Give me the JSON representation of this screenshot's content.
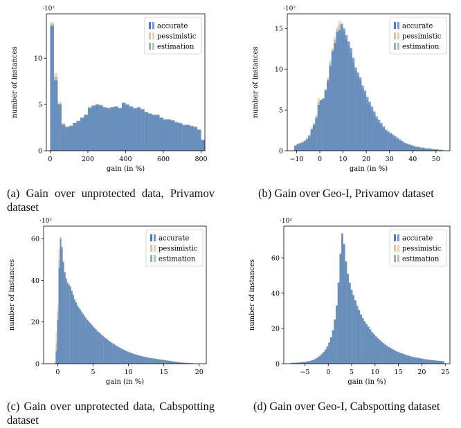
{
  "colors": {
    "accurate": "#4a78c0",
    "pessimistic": "#e7bfa0",
    "estimation": "#8fb79a",
    "overlap": "#6a8a80"
  },
  "captions": {
    "a": "(a) Gain over unprotected data, Privamov dataset",
    "b": "(b) Gain over Geo-I, Privamov dataset",
    "c": "(c) Gain over unprotected data, Cabspotting dataset",
    "d": "(d) Gain over Geo-I, Cabspotting dataset"
  },
  "chart_data": [
    {
      "type": "bar",
      "title": "",
      "xlabel": "gain (in %)",
      "ylabel": "number of instances",
      "y_multiplier": "·10²",
      "legend_placement": "top-right",
      "xlim": [
        -20,
        820
      ],
      "ylim": [
        0,
        14.8
      ],
      "xticks": [
        0,
        200,
        400,
        600,
        800
      ],
      "yticks": [
        0,
        5,
        10
      ],
      "x_start": 0,
      "bin_width": 20,
      "series": [
        {
          "name": "accurate",
          "values": [
            13.5,
            7.6,
            5.0,
            2.8,
            2.6,
            2.7,
            3.0,
            3.2,
            3.6,
            3.9,
            4.6,
            4.9,
            5.0,
            4.9,
            4.7,
            4.6,
            4.7,
            4.8,
            4.6,
            5.2,
            5.0,
            4.8,
            4.6,
            4.7,
            4.5,
            4.2,
            4.0,
            3.9,
            3.9,
            3.6,
            3.4,
            3.4,
            3.3,
            3.1,
            3.0,
            2.8,
            2.8,
            2.7,
            2.6,
            2.3,
            1.2
          ]
        },
        {
          "name": "pessimistic",
          "values": [
            13.9,
            8.4,
            5.3,
            3.0,
            2.5,
            2.7,
            2.9,
            3.3,
            3.4,
            3.9,
            4.8,
            4.8,
            4.9,
            5.0,
            4.5,
            4.7,
            4.6,
            4.7,
            4.7,
            5.0,
            4.8,
            4.6,
            4.6,
            4.5,
            4.3,
            4.1,
            4.0,
            3.8,
            3.7,
            3.5,
            3.3,
            3.4,
            3.2,
            3.0,
            2.9,
            2.7,
            2.8,
            2.6,
            2.5,
            2.2,
            1.0
          ]
        },
        {
          "name": "estimation",
          "values": [
            13.7,
            8.0,
            5.1,
            2.9,
            2.5,
            2.7,
            3.0,
            3.2,
            3.5,
            3.9,
            4.7,
            4.8,
            5.0,
            4.9,
            4.6,
            4.6,
            4.7,
            4.7,
            4.6,
            5.1,
            4.9,
            4.7,
            4.6,
            4.6,
            4.4,
            4.1,
            4.0,
            3.8,
            3.8,
            3.5,
            3.3,
            3.4,
            3.2,
            3.0,
            2.9,
            2.7,
            2.8,
            2.6,
            2.5,
            2.2,
            1.1
          ]
        }
      ]
    },
    {
      "type": "bar",
      "title": "",
      "xlabel": "gain (in %)",
      "ylabel": "number of instances",
      "y_multiplier": "·10²",
      "legend_placement": "top-right",
      "xlim": [
        -14,
        56
      ],
      "ylim": [
        0,
        16.8
      ],
      "xticks": [
        -10,
        0,
        10,
        20,
        30,
        40,
        50
      ],
      "yticks": [
        0,
        5,
        10,
        15
      ],
      "x_start": -11,
      "bin_width": 1,
      "series": [
        {
          "name": "accurate",
          "values": [
            0.6,
            0.8,
            0.9,
            1.0,
            1.2,
            1.4,
            1.8,
            2.6,
            3.2,
            4.0,
            5.6,
            6.2,
            6.4,
            7.4,
            8.6,
            10.4,
            12.2,
            13.2,
            14.6,
            14.8,
            15.6,
            15.0,
            14.2,
            13.4,
            12.6,
            11.4,
            10.2,
            9.6,
            9.0,
            8.0,
            7.4,
            6.6,
            6.0,
            5.4,
            4.8,
            4.2,
            3.8,
            3.4,
            3.0,
            2.6,
            2.4,
            2.2,
            2.0,
            1.8,
            1.6,
            1.4,
            1.2,
            1.0,
            0.9,
            0.8,
            0.7,
            0.6,
            0.5,
            0.5,
            0.4,
            0.4,
            0.3,
            0.3,
            0.3,
            0.2,
            0.2,
            0.2,
            0.1,
            0.1
          ]
        },
        {
          "name": "pessimistic",
          "values": [
            0.7,
            0.9,
            1.0,
            1.1,
            1.3,
            1.6,
            2.0,
            2.9,
            3.5,
            4.4,
            6.5,
            6.3,
            6.5,
            7.6,
            9.0,
            11.1,
            12.6,
            14.0,
            15.2,
            16.0,
            15.2,
            14.2,
            13.2,
            12.4,
            11.4,
            10.4,
            9.6,
            8.8,
            8.2,
            7.2,
            6.6,
            5.8,
            5.2,
            4.6,
            4.2,
            3.6,
            3.2,
            2.8,
            2.6,
            2.2,
            2.0,
            1.8,
            1.6,
            1.4,
            1.3,
            1.1,
            1.0,
            0.8,
            0.7,
            0.6,
            0.6,
            0.5,
            0.4,
            0.4,
            0.3,
            0.3,
            0.2,
            0.2,
            0.2,
            0.2,
            0.1,
            0.1,
            0.1,
            0.1
          ]
        },
        {
          "name": "estimation",
          "values": [
            0.6,
            0.8,
            0.9,
            1.0,
            1.2,
            1.5,
            1.9,
            2.7,
            3.3,
            4.2,
            6.0,
            6.2,
            6.4,
            7.5,
            8.8,
            10.8,
            12.4,
            13.6,
            14.9,
            15.4,
            15.4,
            14.6,
            13.6,
            12.8,
            12.0,
            10.8,
            9.8,
            9.2,
            8.6,
            7.6,
            7.0,
            6.2,
            5.6,
            5.0,
            4.5,
            3.9,
            3.5,
            3.1,
            2.8,
            2.4,
            2.2,
            2.0,
            1.8,
            1.6,
            1.4,
            1.2,
            1.1,
            0.9,
            0.8,
            0.7,
            0.6,
            0.5,
            0.5,
            0.4,
            0.3,
            0.3,
            0.3,
            0.2,
            0.2,
            0.2,
            0.1,
            0.1,
            0.1,
            0.1
          ]
        }
      ]
    },
    {
      "type": "bar",
      "title": "",
      "xlabel": "gain (in %)",
      "ylabel": "number of instances",
      "y_multiplier": "·10²",
      "legend_placement": "top-right",
      "xlim": [
        -2,
        21
      ],
      "ylim": [
        0,
        66
      ],
      "xticks": [
        0,
        5,
        10,
        15,
        20
      ],
      "yticks": [
        0,
        20,
        40,
        60
      ],
      "x_start": -0.5,
      "bin_width": 0.2,
      "series": [
        {
          "name": "accurate",
          "values": [
            0,
            6,
            21,
            46,
            60,
            56,
            49,
            44,
            41,
            39,
            38,
            37,
            35,
            33,
            31,
            29.5,
            28,
            27,
            26,
            25,
            24,
            23,
            22,
            21,
            20.4,
            19.6,
            18.8,
            18,
            17.3,
            16.6,
            15.9,
            15.3,
            14.6,
            14,
            13.4,
            12.8,
            12.3,
            11.7,
            11.2,
            10.7,
            10.2,
            9.8,
            9.3,
            8.9,
            8.5,
            8.1,
            7.7,
            7.3,
            7,
            6.6,
            6.3,
            6,
            5.7,
            5.4,
            5.2,
            4.9,
            4.7,
            4.5,
            4.3,
            4.1,
            3.9,
            3.7,
            3.5,
            3.4,
            3.2,
            3.1,
            2.9,
            2.8,
            2.7,
            2.6,
            2.5,
            2.4,
            2.3,
            2.2,
            2.1,
            2,
            1.9,
            1.8,
            1.7,
            1.6,
            1.5,
            1.4,
            1.3,
            1.2,
            1.1,
            1,
            0.9,
            0.8,
            0.7,
            0.6,
            0.6,
            0.5,
            0.5,
            0.4,
            0.4,
            0.3,
            0.3,
            0.2,
            0.2,
            0.1
          ]
        },
        {
          "name": "pessimistic",
          "values": [
            1,
            15,
            28,
            55,
            61,
            55,
            48,
            43,
            40,
            38,
            37,
            36,
            34,
            32,
            30,
            28.5,
            27,
            26,
            25,
            24,
            23,
            22,
            21.2,
            20.4,
            19.6,
            18.8,
            18,
            17.3,
            16.6,
            15.9,
            15.2,
            14.6,
            14,
            13.4,
            12.8,
            12.2,
            11.7,
            11.2,
            10.7,
            10.2,
            9.7,
            9.3,
            8.9,
            8.5,
            8.1,
            7.7,
            7.3,
            7,
            6.6,
            6.3,
            6,
            5.7,
            5.4,
            5.2,
            4.9,
            4.7,
            4.5,
            4.3,
            4.1,
            3.9,
            3.7,
            3.5,
            3.4,
            3.2,
            3.1,
            2.9,
            2.8,
            2.7,
            2.6,
            2.5,
            2.4,
            2.3,
            2.2,
            2.1,
            2,
            1.9,
            1.8,
            1.7,
            1.6,
            1.5,
            1.4,
            1.3,
            1.2,
            1.1,
            1,
            0.9,
            0.8,
            0.7,
            0.6,
            0.6,
            0.5,
            0.5,
            0.4,
            0.4,
            0.3,
            0.3,
            0.2,
            0.2,
            0.1,
            0.1
          ]
        },
        {
          "name": "estimation",
          "values": [
            0.5,
            10,
            25,
            50,
            60.5,
            55.5,
            48.5,
            43.5,
            40.5,
            38.5,
            37.5,
            36.5,
            34.5,
            32.5,
            30.5,
            29,
            27.5,
            26.5,
            25.5,
            24.5,
            23.5,
            22.5,
            21.6,
            20.7,
            20,
            19.2,
            18.4,
            17.6,
            16.9,
            16.2,
            15.5,
            14.9,
            14.3,
            13.7,
            13.1,
            12.5,
            12,
            11.4,
            10.9,
            10.4,
            10,
            9.5,
            9.1,
            8.7,
            8.3,
            7.9,
            7.5,
            7.1,
            6.8,
            6.4,
            6.1,
            5.8,
            5.5,
            5.3,
            5,
            4.8,
            4.6,
            4.4,
            4.2,
            4,
            3.8,
            3.6,
            3.4,
            3.3,
            3.1,
            3,
            2.8,
            2.7,
            2.6,
            2.5,
            2.4,
            2.3,
            2.2,
            2.1,
            2,
            1.9,
            1.8,
            1.7,
            1.6,
            1.5,
            1.4,
            1.3,
            1.2,
            1.1,
            1,
            0.9,
            0.8,
            0.7,
            0.6,
            0.6,
            0.5,
            0.5,
            0.4,
            0.4,
            0.3,
            0.3,
            0.2,
            0.2,
            0.1,
            0.1
          ]
        }
      ]
    },
    {
      "type": "bar",
      "title": "",
      "xlabel": "gain (in %)",
      "ylabel": "number of instances",
      "y_multiplier": "·10²",
      "legend_placement": "top-right",
      "xlim": [
        -9.5,
        26
      ],
      "ylim": [
        0,
        78
      ],
      "xticks": [
        -5,
        0,
        5,
        10,
        15,
        20,
        25
      ],
      "yticks": [
        0,
        20,
        40,
        60
      ],
      "x_start": -8,
      "bin_width": 0.4,
      "series": [
        {
          "name": "accurate",
          "values": [
            0.5,
            0.5,
            0.6,
            0.6,
            0.7,
            0.8,
            0.9,
            1.0,
            1.2,
            1.4,
            1.6,
            2.0,
            2.4,
            3.0,
            3.6,
            4.4,
            5.4,
            6.6,
            8.0,
            9.8,
            12,
            15,
            19,
            25,
            33,
            46,
            62,
            74,
            68,
            58,
            51,
            46,
            42,
            39,
            36,
            33,
            30.5,
            28,
            26,
            24,
            22.5,
            21,
            19.5,
            18,
            16.8,
            15.6,
            14.5,
            13.5,
            12.6,
            11.7,
            10.9,
            10.1,
            9.4,
            8.8,
            8.2,
            7.6,
            7.1,
            6.6,
            6.2,
            5.8,
            5.4,
            5.0,
            4.7,
            4.4,
            4.1,
            3.8,
            3.6,
            3.4,
            3.2,
            3.0,
            2.8,
            2.6,
            2.5,
            2.3,
            2.2,
            2.0,
            1.9,
            1.8,
            1.7,
            1.6,
            1.5,
            1.4
          ]
        },
        {
          "name": "pessimistic",
          "values": [
            0.5,
            0.5,
            0.6,
            0.6,
            0.7,
            0.8,
            0.9,
            1.0,
            1.2,
            1.4,
            1.6,
            2.0,
            2.4,
            3.0,
            3.6,
            4.4,
            5.4,
            6.6,
            8.0,
            9.8,
            12,
            15,
            19,
            25,
            33,
            46,
            63,
            72,
            67,
            57,
            50,
            45,
            41,
            38,
            35,
            32.5,
            30,
            27.5,
            25.5,
            23.5,
            22,
            20.5,
            19,
            17.6,
            16.4,
            15.2,
            14.1,
            13.2,
            12.3,
            11.4,
            10.6,
            9.9,
            9.2,
            8.6,
            8.0,
            7.4,
            6.9,
            6.5,
            6.1,
            5.7,
            5.3,
            4.9,
            4.6,
            4.3,
            4.0,
            3.7,
            3.5,
            3.3,
            3.1,
            2.9,
            2.7,
            2.5,
            2.4,
            2.2,
            2.1,
            2.0,
            1.9,
            1.8,
            1.7,
            1.6,
            1.5,
            1.4
          ]
        },
        {
          "name": "estimation",
          "values": [
            0.5,
            0.5,
            0.6,
            0.6,
            0.7,
            0.8,
            0.9,
            1.0,
            1.2,
            1.4,
            1.6,
            2.0,
            2.4,
            3.0,
            3.6,
            4.4,
            5.4,
            6.6,
            8.0,
            9.8,
            12,
            15,
            19,
            25,
            33,
            46,
            62.5,
            73,
            67.5,
            57.5,
            50.5,
            45.5,
            41.5,
            38.5,
            35.5,
            32.7,
            30.2,
            27.7,
            25.7,
            23.7,
            22.2,
            20.7,
            19.2,
            17.8,
            16.6,
            15.4,
            14.3,
            13.3,
            12.4,
            11.5,
            10.7,
            10.0,
            9.3,
            8.7,
            8.1,
            7.5,
            7.0,
            6.5,
            6.1,
            5.7,
            5.3,
            4.9,
            4.6,
            4.3,
            4.0,
            3.7,
            3.5,
            3.3,
            3.1,
            2.9,
            2.7,
            2.5,
            2.4,
            2.2,
            2.1,
            2.0,
            1.9,
            1.8,
            1.7,
            1.6,
            1.5,
            1.4
          ]
        }
      ]
    }
  ]
}
